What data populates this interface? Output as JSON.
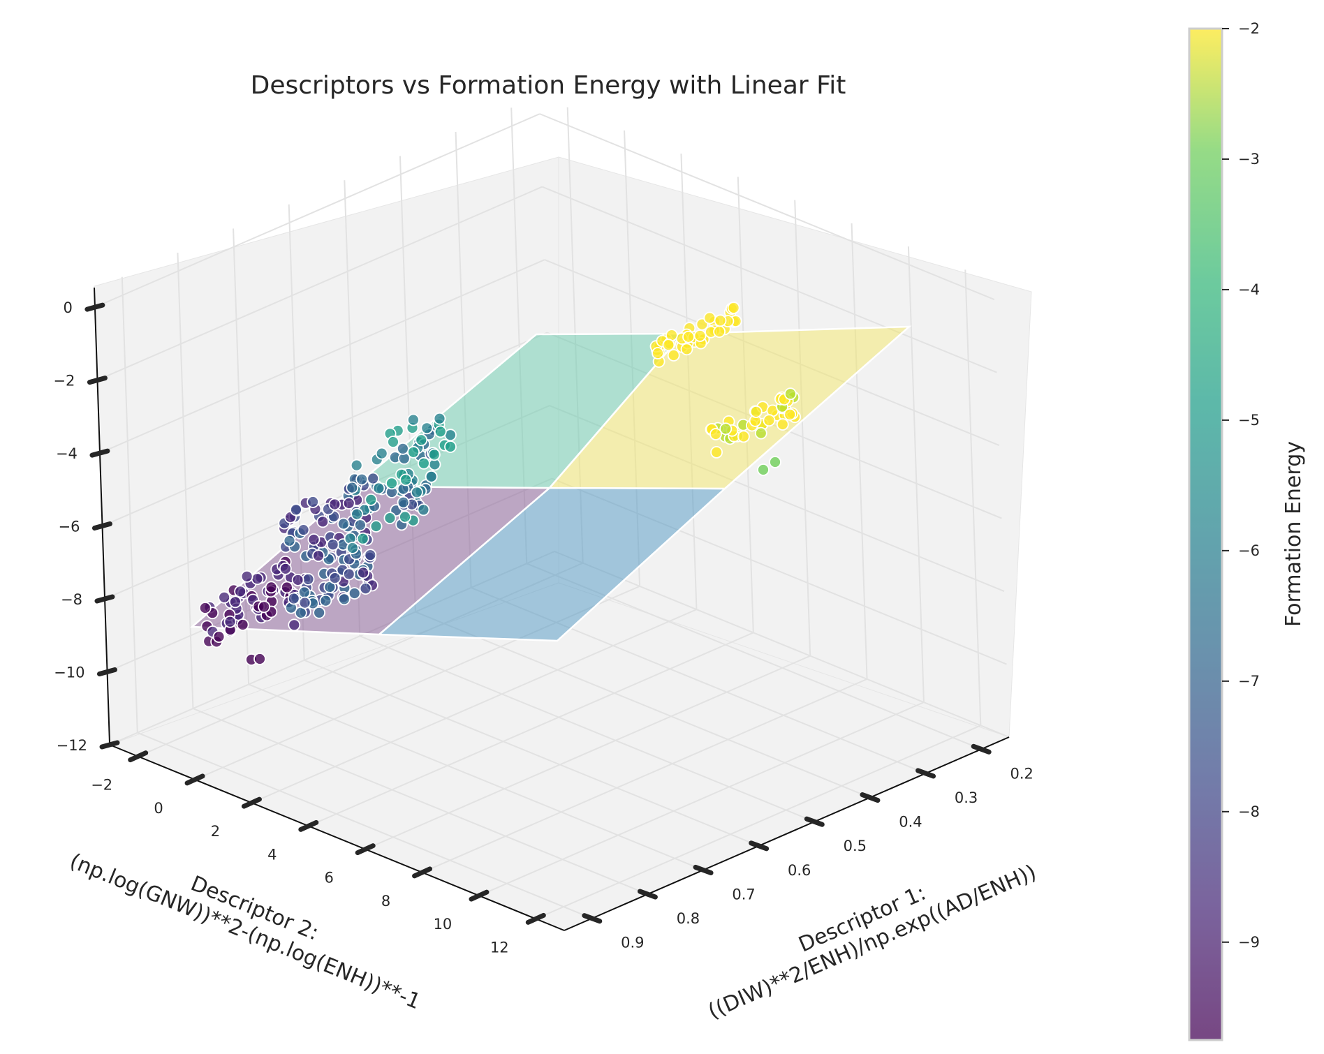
{
  "chart_data": {
    "type": "scatter",
    "subtype": "3d-scatter-with-fit-plane",
    "title": "Descriptors vs Formation Energy with Linear Fit",
    "x_axis": {
      "label_line1": "Descriptor 1:",
      "label_line2": "((DIW)**2/ENH)/np.exp((AD/ENH))",
      "ticks": [
        "0.2",
        "0.3",
        "0.4",
        "0.5",
        "0.6",
        "0.7",
        "0.8",
        "0.9"
      ],
      "range": [
        0.15,
        0.95
      ]
    },
    "y_axis": {
      "label_line1": "Descriptor 2:",
      "label_line2": "(np.log(GNW))**2-(np.log(ENH))**-1",
      "ticks": [
        "−2",
        "0",
        "2",
        "4",
        "6",
        "8",
        "10",
        "12"
      ],
      "range": [
        -3,
        13
      ]
    },
    "z_axis": {
      "label": "",
      "ticks": [
        "−12",
        "−10",
        "−8",
        "−6",
        "−4",
        "−2",
        "0"
      ],
      "range": [
        -12,
        0.5
      ]
    },
    "colorbar": {
      "label": "Formation Energy",
      "colormap": "viridis",
      "ticks": [
        "−2",
        "−3",
        "−4",
        "−5",
        "−6",
        "−7",
        "−8",
        "−9"
      ],
      "range": [
        -9.75,
        -2
      ]
    },
    "fit_plane": {
      "corner_colors": [
        "#7b4a8a",
        "#3f8fbf",
        "#5cc7a6",
        "#f5e65c"
      ],
      "opacity": 0.45
    },
    "grid": true
  }
}
